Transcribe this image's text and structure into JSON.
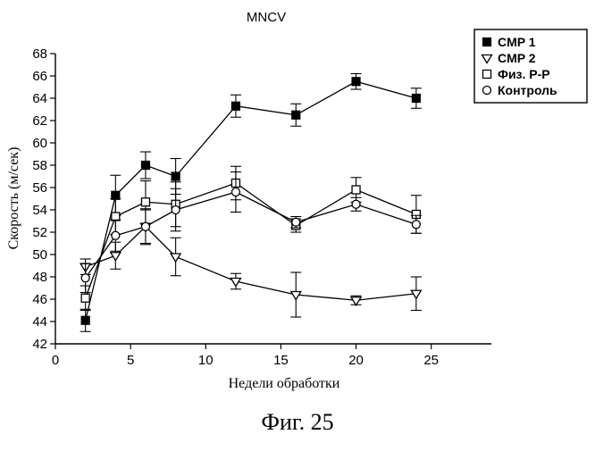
{
  "figure": {
    "caption": "Фиг. 25"
  },
  "chart_data": {
    "type": "line",
    "title": "MNCV",
    "xlabel": "Недели обработки",
    "ylabel": "Скорость (м/сек)",
    "xlim": [
      0,
      29
    ],
    "ylim": [
      42,
      68
    ],
    "xticks": [
      0,
      5,
      10,
      15,
      20,
      25
    ],
    "yticks": [
      42,
      44,
      46,
      48,
      50,
      52,
      54,
      56,
      58,
      60,
      62,
      64,
      66,
      68
    ],
    "grid": false,
    "legend_position": "top-right",
    "x": [
      2,
      4,
      6,
      8,
      12,
      16,
      20,
      24
    ],
    "series": [
      {
        "name": "CMP 1",
        "marker": "square-filled",
        "values": [
          44.1,
          55.3,
          58.0,
          57.0,
          63.3,
          62.5,
          65.5,
          64.0
        ],
        "errors": [
          1.0,
          1.8,
          1.2,
          1.6,
          1.0,
          1.0,
          0.7,
          0.9
        ]
      },
      {
        "name": "CMP 2",
        "marker": "triangle-down-open",
        "values": [
          48.9,
          49.9,
          52.5,
          49.8,
          47.6,
          46.4,
          45.9,
          46.5
        ],
        "errors": [
          0.7,
          1.2,
          1.6,
          1.7,
          0.7,
          2.0,
          0.4,
          1.5
        ]
      },
      {
        "name": "Физ. Р-Р",
        "marker": "square-open",
        "values": [
          46.1,
          53.4,
          54.7,
          54.5,
          56.4,
          52.6,
          55.8,
          53.6
        ],
        "errors": [
          1.1,
          1.6,
          1.9,
          2.0,
          1.5,
          0.6,
          1.1,
          1.7
        ]
      },
      {
        "name": "Контроль",
        "marker": "circle-open",
        "values": [
          47.9,
          51.7,
          52.5,
          54.0,
          55.6,
          52.9,
          54.5,
          52.7
        ],
        "errors": [
          1.3,
          1.4,
          1.5,
          1.9,
          1.8,
          0.5,
          0.6,
          0.8
        ]
      }
    ]
  }
}
